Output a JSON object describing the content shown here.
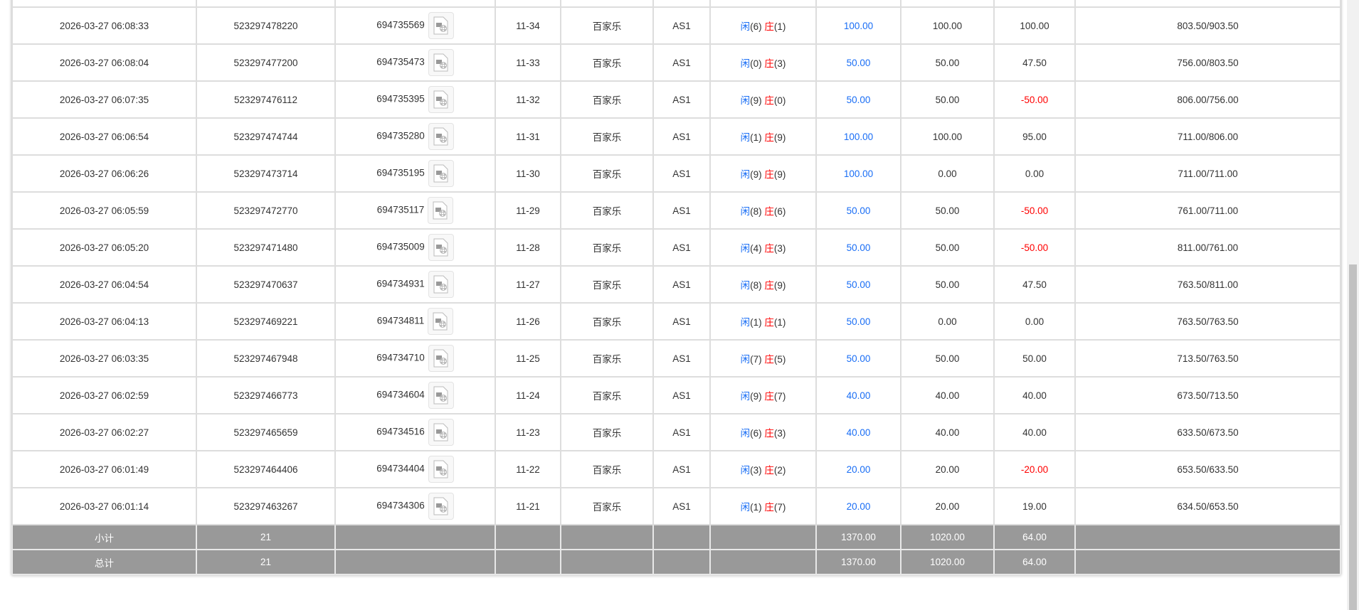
{
  "rows": [
    {
      "time": "",
      "order": "",
      "game_id": "",
      "round": "",
      "game": "",
      "table": "",
      "result_p": "",
      "result_b": "",
      "bet": "",
      "valid": "",
      "win": "",
      "balance": ""
    },
    {
      "time": "2026-03-27 06:08:33",
      "order": "523297478220",
      "game_id": "694735569",
      "round": "11-34",
      "game": "百家乐",
      "table": "AS1",
      "result_p": "闲",
      "p": "(6)",
      "result_b": "庄",
      "b": "(1)",
      "bet": "100.00",
      "valid": "100.00",
      "win": "100.00",
      "balance": "803.50/903.50"
    },
    {
      "time": "2026-03-27 06:08:04",
      "order": "523297477200",
      "game_id": "694735473",
      "round": "11-33",
      "game": "百家乐",
      "table": "AS1",
      "result_p": "闲",
      "p": "(0)",
      "result_b": "庄",
      "b": "(3)",
      "bet": "50.00",
      "valid": "50.00",
      "win": "47.50",
      "balance": "756.00/803.50"
    },
    {
      "time": "2026-03-27 06:07:35",
      "order": "523297476112",
      "game_id": "694735395",
      "round": "11-32",
      "game": "百家乐",
      "table": "AS1",
      "result_p": "闲",
      "p": "(9)",
      "result_b": "庄",
      "b": "(0)",
      "bet": "50.00",
      "valid": "50.00",
      "win": "-50.00",
      "balance": "806.00/756.00"
    },
    {
      "time": "2026-03-27 06:06:54",
      "order": "523297474744",
      "game_id": "694735280",
      "round": "11-31",
      "game": "百家乐",
      "table": "AS1",
      "result_p": "闲",
      "p": "(1)",
      "result_b": "庄",
      "b": "(9)",
      "bet": "100.00",
      "valid": "100.00",
      "win": "95.00",
      "balance": "711.00/806.00"
    },
    {
      "time": "2026-03-27 06:06:26",
      "order": "523297473714",
      "game_id": "694735195",
      "round": "11-30",
      "game": "百家乐",
      "table": "AS1",
      "result_p": "闲",
      "p": "(9)",
      "result_b": "庄",
      "b": "(9)",
      "bet": "100.00",
      "valid": "0.00",
      "win": "0.00",
      "balance": "711.00/711.00"
    },
    {
      "time": "2026-03-27 06:05:59",
      "order": "523297472770",
      "game_id": "694735117",
      "round": "11-29",
      "game": "百家乐",
      "table": "AS1",
      "result_p": "闲",
      "p": "(8)",
      "result_b": "庄",
      "b": "(6)",
      "bet": "50.00",
      "valid": "50.00",
      "win": "-50.00",
      "balance": "761.00/711.00"
    },
    {
      "time": "2026-03-27 06:05:20",
      "order": "523297471480",
      "game_id": "694735009",
      "round": "11-28",
      "game": "百家乐",
      "table": "AS1",
      "result_p": "闲",
      "p": "(4)",
      "result_b": "庄",
      "b": "(3)",
      "bet": "50.00",
      "valid": "50.00",
      "win": "-50.00",
      "balance": "811.00/761.00"
    },
    {
      "time": "2026-03-27 06:04:54",
      "order": "523297470637",
      "game_id": "694734931",
      "round": "11-27",
      "game": "百家乐",
      "table": "AS1",
      "result_p": "闲",
      "p": "(8)",
      "result_b": "庄",
      "b": "(9)",
      "bet": "50.00",
      "valid": "50.00",
      "win": "47.50",
      "balance": "763.50/811.00"
    },
    {
      "time": "2026-03-27 06:04:13",
      "order": "523297469221",
      "game_id": "694734811",
      "round": "11-26",
      "game": "百家乐",
      "table": "AS1",
      "result_p": "闲",
      "p": "(1)",
      "result_b": "庄",
      "b": "(1)",
      "bet": "50.00",
      "valid": "0.00",
      "win": "0.00",
      "balance": "763.50/763.50"
    },
    {
      "time": "2026-03-27 06:03:35",
      "order": "523297467948",
      "game_id": "694734710",
      "round": "11-25",
      "game": "百家乐",
      "table": "AS1",
      "result_p": "闲",
      "p": "(7)",
      "result_b": "庄",
      "b": "(5)",
      "bet": "50.00",
      "valid": "50.00",
      "win": "50.00",
      "balance": "713.50/763.50"
    },
    {
      "time": "2026-03-27 06:02:59",
      "order": "523297466773",
      "game_id": "694734604",
      "round": "11-24",
      "game": "百家乐",
      "table": "AS1",
      "result_p": "闲",
      "p": "(9)",
      "result_b": "庄",
      "b": "(7)",
      "bet": "40.00",
      "valid": "40.00",
      "win": "40.00",
      "balance": "673.50/713.50"
    },
    {
      "time": "2026-03-27 06:02:27",
      "order": "523297465659",
      "game_id": "694734516",
      "round": "11-23",
      "game": "百家乐",
      "table": "AS1",
      "result_p": "闲",
      "p": "(6)",
      "result_b": "庄",
      "b": "(3)",
      "bet": "40.00",
      "valid": "40.00",
      "win": "40.00",
      "balance": "633.50/673.50"
    },
    {
      "time": "2026-03-27 06:01:49",
      "order": "523297464406",
      "game_id": "694734404",
      "round": "11-22",
      "game": "百家乐",
      "table": "AS1",
      "result_p": "闲",
      "p": "(3)",
      "result_b": "庄",
      "b": "(2)",
      "bet": "20.00",
      "valid": "20.00",
      "win": "-20.00",
      "balance": "653.50/633.50"
    },
    {
      "time": "2026-03-27 06:01:14",
      "order": "523297463267",
      "game_id": "694734306",
      "round": "11-21",
      "game": "百家乐",
      "table": "AS1",
      "result_p": "闲",
      "p": "(1)",
      "result_b": "庄",
      "b": "(7)",
      "bet": "20.00",
      "valid": "20.00",
      "win": "19.00",
      "balance": "634.50/653.50"
    }
  ],
  "summary": [
    {
      "label": "小计",
      "count": "21",
      "bet": "1370.00",
      "valid": "1020.00",
      "win": "64.00"
    },
    {
      "label": "总计",
      "count": "21",
      "bet": "1370.00",
      "valid": "1020.00",
      "win": "64.00"
    }
  ],
  "colors": {
    "player": "#1a6ef5",
    "banker": "#ff0000",
    "loss": "#ff0000",
    "summary_bg": "#999999"
  }
}
